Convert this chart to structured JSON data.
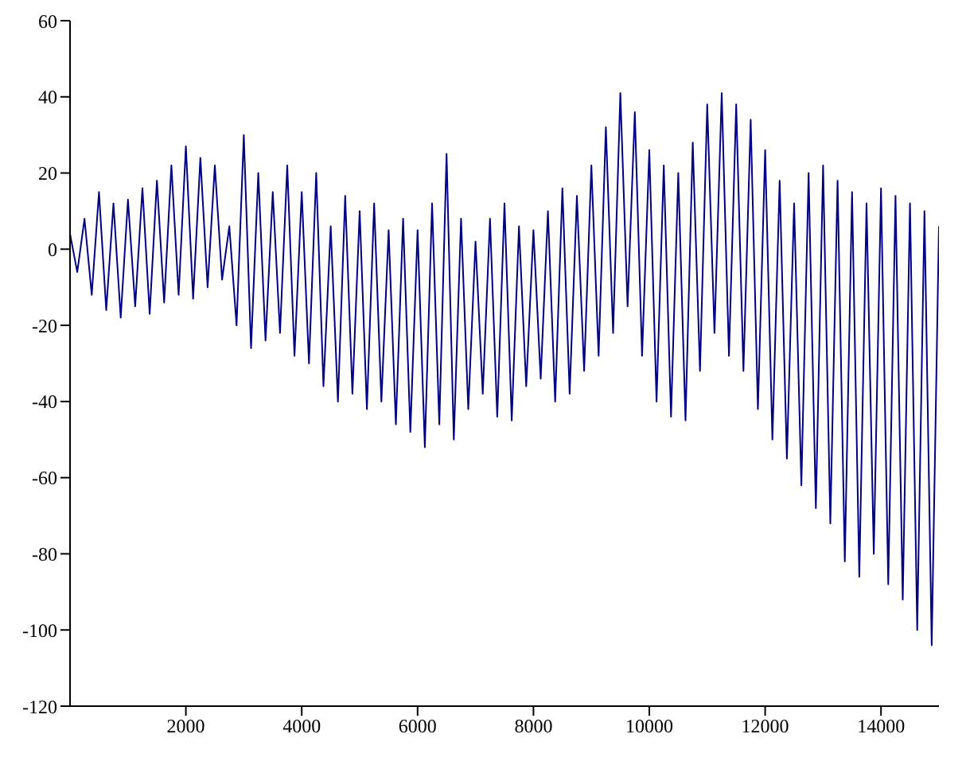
{
  "chart_data": {
    "type": "line",
    "xlim": [
      0,
      15000
    ],
    "ylim": [
      -120,
      60
    ],
    "xticks": [
      2000,
      4000,
      6000,
      8000,
      10000,
      12000,
      14000
    ],
    "yticks": [
      -120,
      -100,
      -80,
      -60,
      -40,
      -20,
      0,
      20,
      40,
      60
    ],
    "grid": false,
    "marker": "none",
    "line_style": "solid",
    "series": [
      {
        "color": "#000080",
        "x": [
          0,
          125,
          250,
          375,
          500,
          625,
          750,
          875,
          1000,
          1125,
          1250,
          1375,
          1500,
          1625,
          1750,
          1875,
          2000,
          2125,
          2250,
          2375,
          2500,
          2625,
          2750,
          2875,
          3000,
          3125,
          3250,
          3375,
          3500,
          3625,
          3750,
          3875,
          4000,
          4125,
          4250,
          4375,
          4500,
          4625,
          4750,
          4875,
          5000,
          5125,
          5250,
          5375,
          5500,
          5625,
          5750,
          5875,
          6000,
          6125,
          6250,
          6375,
          6500,
          6625,
          6750,
          6875,
          7000,
          7125,
          7250,
          7375,
          7500,
          7625,
          7750,
          7875,
          8000,
          8125,
          8250,
          8375,
          8500,
          8625,
          8750,
          8875,
          9000,
          9125,
          9250,
          9375,
          9500,
          9625,
          9750,
          9875,
          10000,
          10125,
          10250,
          10375,
          10500,
          10625,
          10750,
          10875,
          11000,
          11125,
          11250,
          11375,
          11500,
          11625,
          11750,
          11875,
          12000,
          12125,
          12250,
          12375,
          12500,
          12625,
          12750,
          12875,
          13000,
          13125,
          13250,
          13375,
          13500,
          13625,
          13750,
          13875,
          14000,
          14125,
          14250,
          14375,
          14500,
          14625,
          14750,
          14875,
          15000
        ],
        "values": [
          4,
          -6,
          8,
          -12,
          15,
          -16,
          12,
          -18,
          13,
          -15,
          16,
          -17,
          18,
          -14,
          22,
          -12,
          27,
          -13,
          24,
          -10,
          22,
          -8,
          6,
          -20,
          30,
          -26,
          20,
          -24,
          15,
          -22,
          22,
          -28,
          15,
          -30,
          20,
          -36,
          6,
          -40,
          14,
          -38,
          10,
          -42,
          12,
          -40,
          5,
          -46,
          8,
          -48,
          5,
          -52,
          12,
          -46,
          25,
          -50,
          8,
          -42,
          2,
          -38,
          8,
          -44,
          12,
          -45,
          6,
          -36,
          5,
          -34,
          10,
          -40,
          16,
          -38,
          14,
          -32,
          22,
          -28,
          32,
          -22,
          41,
          -15,
          36,
          -28,
          26,
          -40,
          22,
          -44,
          20,
          -45,
          28,
          -32,
          38,
          -22,
          41,
          -28,
          38,
          -32,
          34,
          -42,
          26,
          -50,
          18,
          -55,
          12,
          -62,
          20,
          -68,
          22,
          -72,
          18,
          -82,
          15,
          -86,
          12,
          -80,
          16,
          -88,
          14,
          -92,
          12,
          -100,
          10,
          -104,
          6
        ]
      }
    ]
  }
}
